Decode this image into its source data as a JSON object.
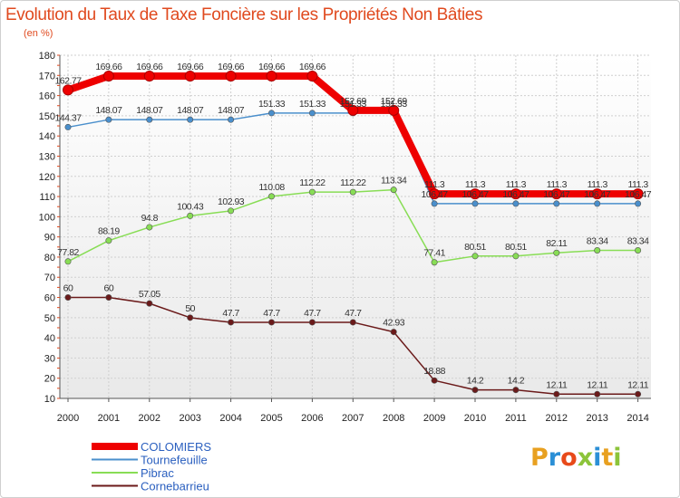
{
  "header": {
    "title": "Evolution du Taux de Taxe Foncière sur les Propriétés Non Bâties",
    "unit": "(en %)"
  },
  "chart_data": {
    "type": "line",
    "title": "Evolution du Taux de Taxe Foncière sur les Propriétés Non Bâties",
    "ylabel": "(en %)",
    "xlabel": "",
    "ylim": [
      10,
      180
    ],
    "yticks": [
      10,
      20,
      30,
      40,
      50,
      60,
      70,
      80,
      90,
      100,
      110,
      120,
      130,
      140,
      150,
      160,
      170,
      180
    ],
    "categories": [
      "2000",
      "2001",
      "2002",
      "2003",
      "2004",
      "2005",
      "2006",
      "2007",
      "2008",
      "2009",
      "2010",
      "2011",
      "2012",
      "2013",
      "2014"
    ],
    "legend_position": "bottom-left",
    "series": [
      {
        "name": "Tournefeuille",
        "color": "#4a8fcc",
        "values": [
          144.37,
          148.07,
          148.07,
          148.07,
          148.07,
          151.33,
          151.33,
          151.33,
          151.33,
          106.47,
          106.47,
          106.47,
          106.47,
          106.47,
          106.47
        ]
      },
      {
        "name": "Pibrac",
        "color": "#88dd55",
        "values": [
          77.82,
          88.19,
          94.8,
          100.43,
          102.93,
          110.08,
          112.22,
          112.22,
          113.34,
          77.41,
          80.51,
          80.51,
          82.11,
          83.34,
          83.34
        ]
      },
      {
        "name": "Cornebarrieu",
        "color": "#6b1a1a",
        "values": [
          60,
          60,
          57.05,
          50,
          47.7,
          47.7,
          47.7,
          47.7,
          42.93,
          18.88,
          14.2,
          14.2,
          12.11,
          12.11,
          12.11
        ]
      },
      {
        "name": "COLOMIERS",
        "color": "#ee0000",
        "values": [
          162.77,
          169.66,
          169.66,
          169.66,
          169.66,
          169.66,
          169.66,
          152.69,
          152.69,
          111.3,
          111.3,
          111.3,
          111.3,
          111.3,
          111.3
        ]
      }
    ],
    "legend_order": [
      "COLOMIERS",
      "Tournefeuille",
      "Pibrac",
      "Cornebarrieu"
    ]
  },
  "logo": {
    "letters": [
      "P",
      "r",
      "o",
      "x",
      "i",
      "t",
      "i"
    ],
    "colors": [
      "#e8a020",
      "#2b8fd6",
      "#e84a1a",
      "#8cc43a",
      "#2b8fd6",
      "#e8a020",
      "#8cc43a"
    ]
  }
}
